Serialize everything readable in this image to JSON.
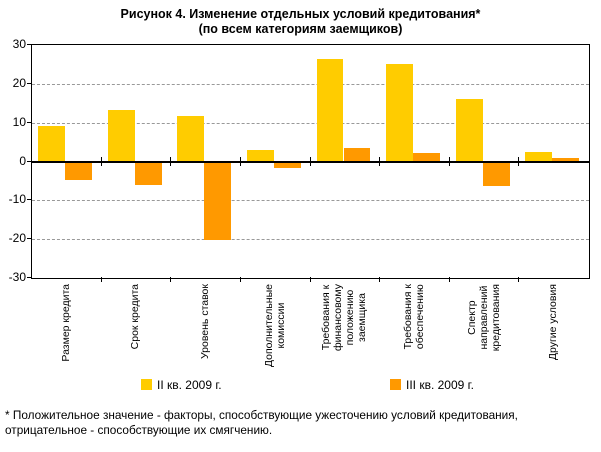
{
  "title": "Рисунок 4. Изменение отдельных условий кредитования*",
  "subtitle": "(по всем категориям заемщиков)",
  "footnote": "* Положительное значение - факторы, способствующие ужесточению условий кредитования, отрицательное - способствующие их смягчению.",
  "chart_data": {
    "type": "bar",
    "title": "Рисунок 4. Изменение отдельных условий кредитования* (по всем категориям заемщиков)",
    "categories": [
      "Размер кредита",
      "Срок кредита",
      "Уровень ставок",
      "Дополнительные комиссии",
      "Требования к финансовому положению заемщика",
      "Требования к обеспечению",
      "Спектр направлений кредитования",
      "Другие условия"
    ],
    "category_label_lines": [
      [
        "Размер кредита"
      ],
      [
        "Срок кредита"
      ],
      [
        "Уровень ставок"
      ],
      [
        "Дополнительные",
        "комиссии"
      ],
      [
        "Требования к",
        "финансовому",
        "положению",
        "заемщика"
      ],
      [
        "Требования к",
        "обеспечению"
      ],
      [
        "Спектр",
        "направлений",
        "кредитования"
      ],
      [
        "Другие условия"
      ]
    ],
    "series": [
      {
        "name": "II кв. 2009 г.",
        "color": "#FFCC00",
        "values": [
          9.2,
          13.3,
          11.6,
          2.9,
          26.3,
          25.1,
          16.2,
          2.4
        ]
      },
      {
        "name": "III кв. 2009 г.",
        "color": "#FF9900",
        "values": [
          -4.7,
          -6.1,
          -20.3,
          -1.7,
          3.6,
          2.3,
          -6.3,
          0.9
        ]
      }
    ],
    "ylim": [
      -30,
      30
    ],
    "y_ticks": [
      30,
      20,
      10,
      0,
      -10,
      -20,
      -30
    ],
    "grid": "horizontal dashed gridlines at -20, -10, 10, 20",
    "legend_position": "bottom",
    "colors": {
      "gridline": "#999999",
      "axis": "#000000",
      "background": "#FFFFFF",
      "text": "#000000"
    }
  }
}
